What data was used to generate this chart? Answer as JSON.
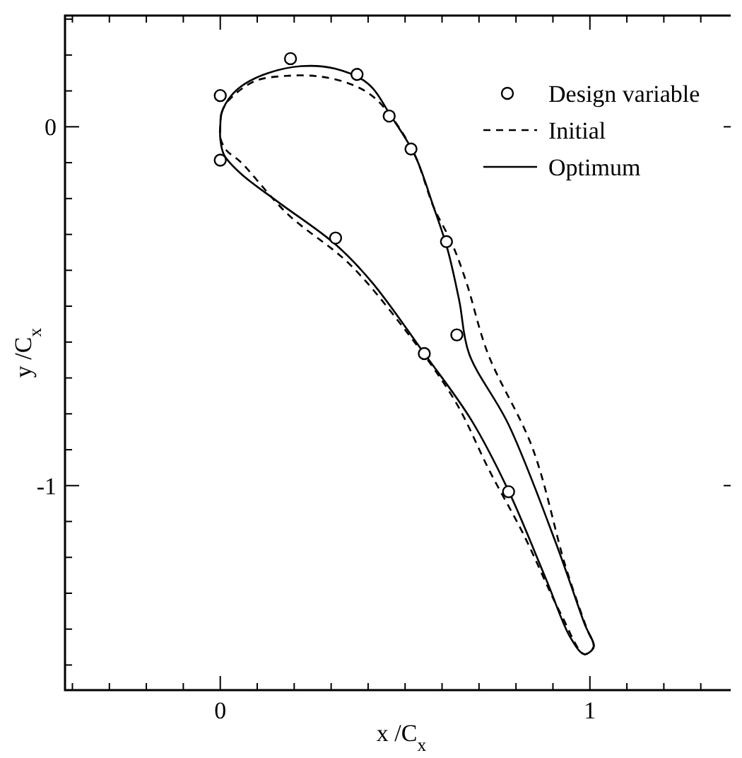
{
  "chart_data": {
    "type": "scatter",
    "xlabel": "x /C$_{x}$",
    "ylabel": "y /C$_{x}$",
    "xlim": [
      -0.42,
      1.4
    ],
    "ylim": [
      -1.57,
      0.31
    ],
    "xticks": [
      {
        "value": -0.4,
        "label": null
      },
      {
        "value": -0.3,
        "label": null
      },
      {
        "value": -0.2,
        "label": null
      },
      {
        "value": -0.1,
        "label": null
      },
      0,
      {
        "value": 0.1,
        "label": null
      },
      {
        "value": 0.2,
        "label": null
      },
      {
        "value": 0.3,
        "label": null
      },
      {
        "value": 0.4,
        "label": null
      },
      {
        "value": 0.5,
        "label": null
      },
      {
        "value": 0.6,
        "label": null
      },
      {
        "value": 0.7,
        "label": null
      },
      {
        "value": 0.8,
        "label": null
      },
      {
        "value": 0.9,
        "label": null
      },
      1,
      {
        "value": 1.1,
        "label": null
      },
      {
        "value": 1.2,
        "label": null
      },
      {
        "value": 1.3,
        "label": null
      }
    ],
    "yticks": [
      {
        "value": -1.5,
        "label": null
      },
      {
        "value": -1.4,
        "label": null
      },
      {
        "value": -1.3,
        "label": null
      },
      {
        "value": -1.2,
        "label": null
      },
      {
        "value": -1.1,
        "label": null
      },
      -1,
      {
        "value": -0.9,
        "label": null
      },
      {
        "value": -0.8,
        "label": null
      },
      {
        "value": -0.7,
        "label": null
      },
      {
        "value": -0.6,
        "label": null
      },
      {
        "value": -0.5,
        "label": null
      },
      {
        "value": -0.4,
        "label": null
      },
      {
        "value": -0.3,
        "label": null
      },
      {
        "value": -0.2,
        "label": null
      },
      {
        "value": -0.1,
        "label": null
      },
      0,
      {
        "value": 0.1,
        "label": null
      },
      {
        "value": 0.2,
        "label": null
      },
      {
        "value": 0.3,
        "label": null
      }
    ],
    "legend": "top right",
    "marker": "circle",
    "annotations": [
      "Initial",
      "Optimum"
    ],
    "series": [
      {
        "name": "Design variable",
        "color": "#000000",
        "x": [
          0.0,
          0.0,
          0.19,
          0.37,
          0.457,
          0.516,
          0.312,
          0.612,
          0.64,
          0.552,
          0.78
        ],
        "values": [
          0.087,
          -0.093,
          0.19,
          0.146,
          0.03,
          -0.062,
          -0.31,
          -0.32,
          -0.58,
          -0.632,
          -1.017
        ]
      }
    ]
  }
}
